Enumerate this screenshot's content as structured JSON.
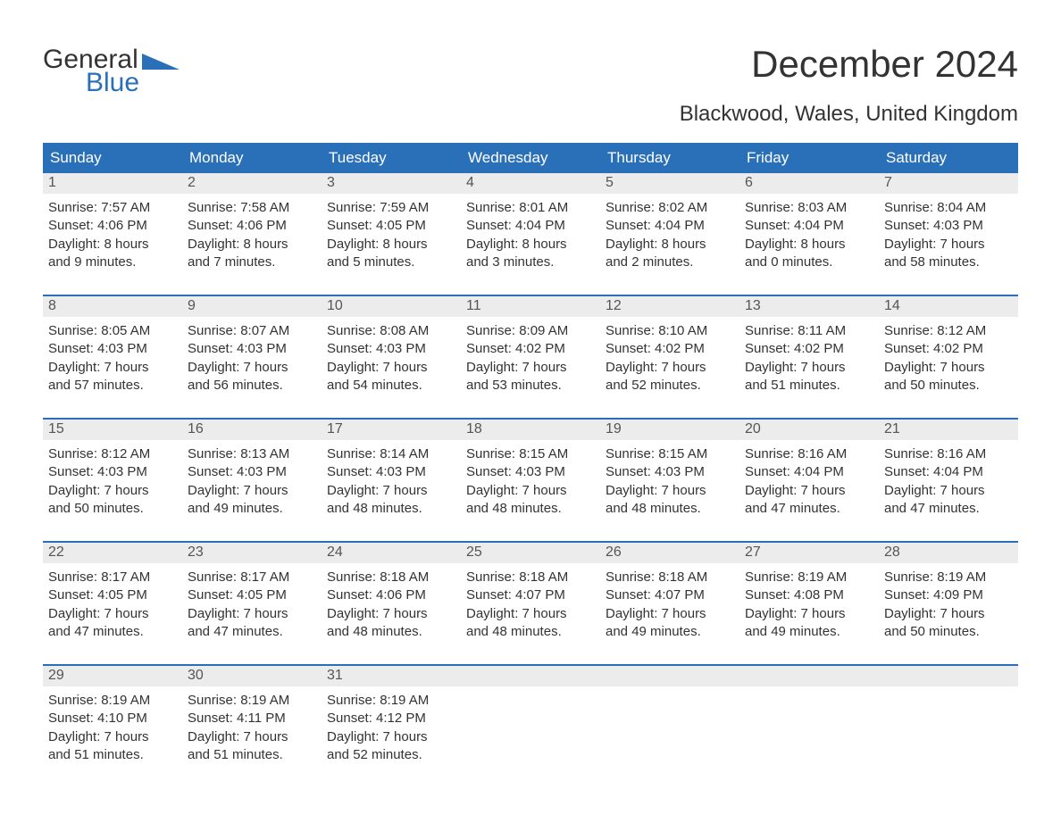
{
  "logo": {
    "text1": "General",
    "text2": "Blue"
  },
  "title": "December 2024",
  "location": "Blackwood, Wales, United Kingdom",
  "colors": {
    "accent": "#2a70b8",
    "header_bg": "#2a70b8",
    "header_text": "#ffffff",
    "daynum_bg": "#ececec",
    "text": "#333333"
  },
  "weekdays": [
    "Sunday",
    "Monday",
    "Tuesday",
    "Wednesday",
    "Thursday",
    "Friday",
    "Saturday"
  ],
  "weeks": [
    [
      {
        "n": "1",
        "sunrise": "Sunrise: 7:57 AM",
        "sunset": "Sunset: 4:06 PM",
        "d1": "Daylight: 8 hours",
        "d2": "and 9 minutes."
      },
      {
        "n": "2",
        "sunrise": "Sunrise: 7:58 AM",
        "sunset": "Sunset: 4:06 PM",
        "d1": "Daylight: 8 hours",
        "d2": "and 7 minutes."
      },
      {
        "n": "3",
        "sunrise": "Sunrise: 7:59 AM",
        "sunset": "Sunset: 4:05 PM",
        "d1": "Daylight: 8 hours",
        "d2": "and 5 minutes."
      },
      {
        "n": "4",
        "sunrise": "Sunrise: 8:01 AM",
        "sunset": "Sunset: 4:04 PM",
        "d1": "Daylight: 8 hours",
        "d2": "and 3 minutes."
      },
      {
        "n": "5",
        "sunrise": "Sunrise: 8:02 AM",
        "sunset": "Sunset: 4:04 PM",
        "d1": "Daylight: 8 hours",
        "d2": "and 2 minutes."
      },
      {
        "n": "6",
        "sunrise": "Sunrise: 8:03 AM",
        "sunset": "Sunset: 4:04 PM",
        "d1": "Daylight: 8 hours",
        "d2": "and 0 minutes."
      },
      {
        "n": "7",
        "sunrise": "Sunrise: 8:04 AM",
        "sunset": "Sunset: 4:03 PM",
        "d1": "Daylight: 7 hours",
        "d2": "and 58 minutes."
      }
    ],
    [
      {
        "n": "8",
        "sunrise": "Sunrise: 8:05 AM",
        "sunset": "Sunset: 4:03 PM",
        "d1": "Daylight: 7 hours",
        "d2": "and 57 minutes."
      },
      {
        "n": "9",
        "sunrise": "Sunrise: 8:07 AM",
        "sunset": "Sunset: 4:03 PM",
        "d1": "Daylight: 7 hours",
        "d2": "and 56 minutes."
      },
      {
        "n": "10",
        "sunrise": "Sunrise: 8:08 AM",
        "sunset": "Sunset: 4:03 PM",
        "d1": "Daylight: 7 hours",
        "d2": "and 54 minutes."
      },
      {
        "n": "11",
        "sunrise": "Sunrise: 8:09 AM",
        "sunset": "Sunset: 4:02 PM",
        "d1": "Daylight: 7 hours",
        "d2": "and 53 minutes."
      },
      {
        "n": "12",
        "sunrise": "Sunrise: 8:10 AM",
        "sunset": "Sunset: 4:02 PM",
        "d1": "Daylight: 7 hours",
        "d2": "and 52 minutes."
      },
      {
        "n": "13",
        "sunrise": "Sunrise: 8:11 AM",
        "sunset": "Sunset: 4:02 PM",
        "d1": "Daylight: 7 hours",
        "d2": "and 51 minutes."
      },
      {
        "n": "14",
        "sunrise": "Sunrise: 8:12 AM",
        "sunset": "Sunset: 4:02 PM",
        "d1": "Daylight: 7 hours",
        "d2": "and 50 minutes."
      }
    ],
    [
      {
        "n": "15",
        "sunrise": "Sunrise: 8:12 AM",
        "sunset": "Sunset: 4:03 PM",
        "d1": "Daylight: 7 hours",
        "d2": "and 50 minutes."
      },
      {
        "n": "16",
        "sunrise": "Sunrise: 8:13 AM",
        "sunset": "Sunset: 4:03 PM",
        "d1": "Daylight: 7 hours",
        "d2": "and 49 minutes."
      },
      {
        "n": "17",
        "sunrise": "Sunrise: 8:14 AM",
        "sunset": "Sunset: 4:03 PM",
        "d1": "Daylight: 7 hours",
        "d2": "and 48 minutes."
      },
      {
        "n": "18",
        "sunrise": "Sunrise: 8:15 AM",
        "sunset": "Sunset: 4:03 PM",
        "d1": "Daylight: 7 hours",
        "d2": "and 48 minutes."
      },
      {
        "n": "19",
        "sunrise": "Sunrise: 8:15 AM",
        "sunset": "Sunset: 4:03 PM",
        "d1": "Daylight: 7 hours",
        "d2": "and 48 minutes."
      },
      {
        "n": "20",
        "sunrise": "Sunrise: 8:16 AM",
        "sunset": "Sunset: 4:04 PM",
        "d1": "Daylight: 7 hours",
        "d2": "and 47 minutes."
      },
      {
        "n": "21",
        "sunrise": "Sunrise: 8:16 AM",
        "sunset": "Sunset: 4:04 PM",
        "d1": "Daylight: 7 hours",
        "d2": "and 47 minutes."
      }
    ],
    [
      {
        "n": "22",
        "sunrise": "Sunrise: 8:17 AM",
        "sunset": "Sunset: 4:05 PM",
        "d1": "Daylight: 7 hours",
        "d2": "and 47 minutes."
      },
      {
        "n": "23",
        "sunrise": "Sunrise: 8:17 AM",
        "sunset": "Sunset: 4:05 PM",
        "d1": "Daylight: 7 hours",
        "d2": "and 47 minutes."
      },
      {
        "n": "24",
        "sunrise": "Sunrise: 8:18 AM",
        "sunset": "Sunset: 4:06 PM",
        "d1": "Daylight: 7 hours",
        "d2": "and 48 minutes."
      },
      {
        "n": "25",
        "sunrise": "Sunrise: 8:18 AM",
        "sunset": "Sunset: 4:07 PM",
        "d1": "Daylight: 7 hours",
        "d2": "and 48 minutes."
      },
      {
        "n": "26",
        "sunrise": "Sunrise: 8:18 AM",
        "sunset": "Sunset: 4:07 PM",
        "d1": "Daylight: 7 hours",
        "d2": "and 49 minutes."
      },
      {
        "n": "27",
        "sunrise": "Sunrise: 8:19 AM",
        "sunset": "Sunset: 4:08 PM",
        "d1": "Daylight: 7 hours",
        "d2": "and 49 minutes."
      },
      {
        "n": "28",
        "sunrise": "Sunrise: 8:19 AM",
        "sunset": "Sunset: 4:09 PM",
        "d1": "Daylight: 7 hours",
        "d2": "and 50 minutes."
      }
    ],
    [
      {
        "n": "29",
        "sunrise": "Sunrise: 8:19 AM",
        "sunset": "Sunset: 4:10 PM",
        "d1": "Daylight: 7 hours",
        "d2": "and 51 minutes."
      },
      {
        "n": "30",
        "sunrise": "Sunrise: 8:19 AM",
        "sunset": "Sunset: 4:11 PM",
        "d1": "Daylight: 7 hours",
        "d2": "and 51 minutes."
      },
      {
        "n": "31",
        "sunrise": "Sunrise: 8:19 AM",
        "sunset": "Sunset: 4:12 PM",
        "d1": "Daylight: 7 hours",
        "d2": "and 52 minutes."
      },
      {
        "empty": true
      },
      {
        "empty": true
      },
      {
        "empty": true
      },
      {
        "empty": true
      }
    ]
  ]
}
